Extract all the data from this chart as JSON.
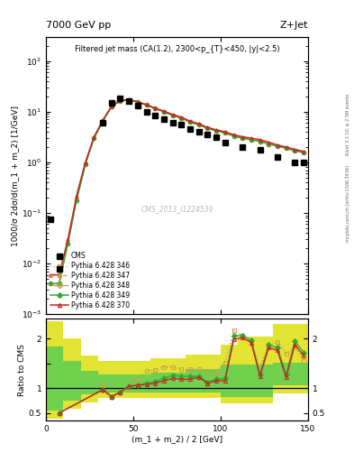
{
  "title_left": "7000 GeV pp",
  "title_right": "Z+Jet",
  "main_title": "Filtered jet mass (CA(1.2), 2300<p_{T}<450, |y|<2.5)",
  "ylabel_main": "1000/σ 2dσ/d(m_1 + m_2) [1/GeV]",
  "ylabel_ratio": "Ratio to CMS",
  "xlabel": "(m_1 + m_2) / 2 [GeV]",
  "watermark": "CMS_2013_I1224539",
  "right_label": "mcplots.cern.ch [arXiv:1306.3436]",
  "right_label2": "Rivet 3.1.10, ≥ 2.5M events",
  "xlim": [
    0,
    150
  ],
  "ylim_main": [
    0.001,
    300
  ],
  "ylim_ratio": [
    0.35,
    2.4
  ],
  "cms_x": [
    2.5,
    7.5,
    32.5,
    37.5,
    42.5,
    47.5,
    52.5,
    57.5,
    62.5,
    67.5,
    72.5,
    77.5,
    82.5,
    87.5,
    92.5,
    97.5,
    102.5,
    112.5,
    122.5,
    132.5,
    142.5,
    147.5
  ],
  "cms_vals": [
    0.075,
    0.008,
    6.0,
    15.0,
    18.0,
    16.0,
    13.0,
    10.0,
    8.5,
    7.0,
    6.0,
    5.5,
    4.5,
    4.0,
    3.5,
    3.2,
    2.5,
    2.0,
    1.8,
    1.3,
    1.0,
    1.0
  ],
  "py_x": [
    2.5,
    7.5,
    12.5,
    17.5,
    22.5,
    27.5,
    32.5,
    37.5,
    42.5,
    47.5,
    52.5,
    57.5,
    62.5,
    67.5,
    72.5,
    77.5,
    82.5,
    87.5,
    92.5,
    97.5,
    102.5,
    107.5,
    112.5,
    117.5,
    122.5,
    127.5,
    132.5,
    137.5,
    142.5,
    147.5
  ],
  "py346_y": [
    0.004,
    0.004,
    0.025,
    0.18,
    0.9,
    3.0,
    6.5,
    12.5,
    16.5,
    17.0,
    15.5,
    13.5,
    11.5,
    10.0,
    8.5,
    7.5,
    6.2,
    5.5,
    4.7,
    4.2,
    3.8,
    3.3,
    3.0,
    2.8,
    2.6,
    2.3,
    2.1,
    1.9,
    1.7,
    1.55
  ],
  "py347_y": [
    0.004,
    0.004,
    0.025,
    0.18,
    0.9,
    3.0,
    6.5,
    12.5,
    16.5,
    17.0,
    15.5,
    13.5,
    11.5,
    10.0,
    8.5,
    7.5,
    6.2,
    5.5,
    4.7,
    4.2,
    3.8,
    3.3,
    3.0,
    2.8,
    2.6,
    2.3,
    2.1,
    1.9,
    1.7,
    1.55
  ],
  "py348_y": [
    0.004,
    0.004,
    0.025,
    0.18,
    0.9,
    3.0,
    6.5,
    12.5,
    16.5,
    17.0,
    15.5,
    13.5,
    11.5,
    10.0,
    8.5,
    7.5,
    6.2,
    5.5,
    4.7,
    4.2,
    3.8,
    3.3,
    3.0,
    2.8,
    2.6,
    2.3,
    2.1,
    1.9,
    1.7,
    1.55
  ],
  "py349_y": [
    0.004,
    0.004,
    0.025,
    0.18,
    0.9,
    3.0,
    6.5,
    12.5,
    16.5,
    17.0,
    15.5,
    13.5,
    11.5,
    10.0,
    8.5,
    7.5,
    6.2,
    5.5,
    4.7,
    4.2,
    3.8,
    3.3,
    3.0,
    2.8,
    2.6,
    2.3,
    2.1,
    1.9,
    1.7,
    1.55
  ],
  "py370_y": [
    0.006,
    0.006,
    0.03,
    0.22,
    1.0,
    3.2,
    6.8,
    12.8,
    16.8,
    17.3,
    15.8,
    13.8,
    11.8,
    10.3,
    8.8,
    7.8,
    6.5,
    5.8,
    4.9,
    4.4,
    4.0,
    3.5,
    3.2,
    3.0,
    2.8,
    2.5,
    2.2,
    2.0,
    1.8,
    1.65
  ],
  "ratio_x": [
    2.5,
    7.5,
    12.5,
    17.5,
    22.5,
    27.5,
    32.5,
    37.5,
    42.5,
    47.5,
    52.5,
    57.5,
    62.5,
    67.5,
    72.5,
    77.5,
    82.5,
    87.5,
    92.5,
    97.5,
    102.5,
    107.5,
    112.5,
    117.5,
    122.5,
    127.5,
    132.5,
    137.5,
    142.5,
    147.5
  ],
  "ratio346_y": [
    null,
    null,
    null,
    null,
    null,
    null,
    1.08,
    0.83,
    0.92,
    1.06,
    1.19,
    1.35,
    1.36,
    1.43,
    1.42,
    1.38,
    1.38,
    1.38,
    1.34,
    1.31,
    1.52,
    2.16,
    2.06,
    1.94,
    1.44,
    1.84,
    1.94,
    1.7,
    1.84,
    1.55
  ],
  "ratio349_y": [
    null,
    0.5,
    null,
    null,
    null,
    null,
    0.97,
    0.83,
    0.92,
    1.04,
    1.06,
    1.1,
    1.13,
    1.2,
    1.26,
    1.24,
    1.24,
    1.24,
    1.12,
    1.18,
    1.2,
    2.06,
    2.06,
    1.97,
    1.28,
    1.87,
    1.82,
    1.27,
    1.95,
    1.72
  ],
  "ratio370_y": [
    null,
    0.5,
    null,
    null,
    null,
    null,
    0.97,
    0.83,
    0.92,
    1.04,
    1.06,
    1.08,
    1.1,
    1.15,
    1.2,
    1.18,
    1.18,
    1.22,
    1.1,
    1.15,
    1.15,
    1.98,
    2.02,
    1.92,
    1.24,
    1.82,
    1.76,
    1.22,
    1.88,
    1.65
  ],
  "band_x_edges": [
    0,
    10,
    20,
    30,
    60,
    80,
    100,
    110,
    130,
    150
  ],
  "green_lo": [
    0.55,
    0.75,
    0.88,
    0.92,
    0.92,
    0.92,
    0.82,
    0.82,
    1.05,
    1.05
  ],
  "green_hi": [
    1.85,
    1.55,
    1.35,
    1.28,
    1.32,
    1.38,
    1.48,
    1.48,
    1.52,
    1.52
  ],
  "yellow_lo": [
    0.38,
    0.58,
    0.72,
    0.8,
    0.8,
    0.8,
    0.7,
    0.7,
    0.9,
    0.9
  ],
  "yellow_hi": [
    2.35,
    2.0,
    1.65,
    1.55,
    1.6,
    1.68,
    1.88,
    2.05,
    2.3,
    2.3
  ],
  "color_346": "#c8a050",
  "color_347": "#c8a050",
  "color_348": "#c8a050",
  "color_349": "#33aa33",
  "color_370": "#cc2222",
  "color_green_band": "#55cc55",
  "color_yellow_band": "#dddd00"
}
